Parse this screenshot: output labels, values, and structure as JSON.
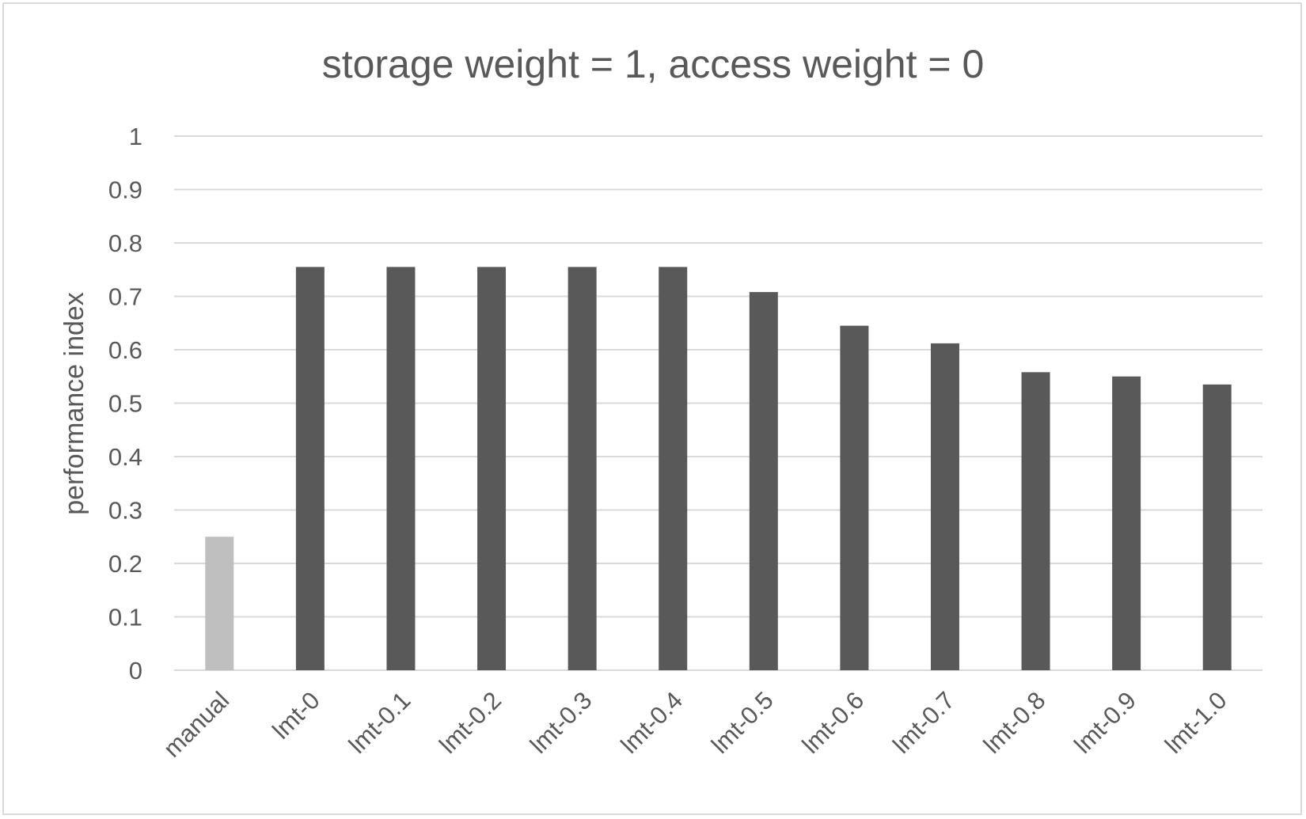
{
  "chart_data": {
    "type": "bar",
    "title": "storage weight = 1, access weight = 0",
    "xlabel": "",
    "ylabel": "performance index",
    "ylim": [
      0,
      1
    ],
    "yticks": [
      "0",
      "0.1",
      "0.2",
      "0.3",
      "0.4",
      "0.5",
      "0.6",
      "0.7",
      "0.8",
      "0.9",
      "1"
    ],
    "categories": [
      "manual",
      "lmt-0",
      "lmt-0.1",
      "lmt-0.2",
      "lmt-0.3",
      "lmt-0.4",
      "lmt-0.5",
      "lmt-0.6",
      "lmt-0.7",
      "lmt-0.8",
      "lmt-0.9",
      "lmt-1.0"
    ],
    "values": [
      0.25,
      0.755,
      0.755,
      0.755,
      0.755,
      0.755,
      0.708,
      0.645,
      0.612,
      0.558,
      0.55,
      0.535
    ],
    "colors": [
      "#bfbfbf",
      "#595959",
      "#595959",
      "#595959",
      "#595959",
      "#595959",
      "#595959",
      "#595959",
      "#595959",
      "#595959",
      "#595959",
      "#595959"
    ],
    "grid": true,
    "legend": "none"
  }
}
